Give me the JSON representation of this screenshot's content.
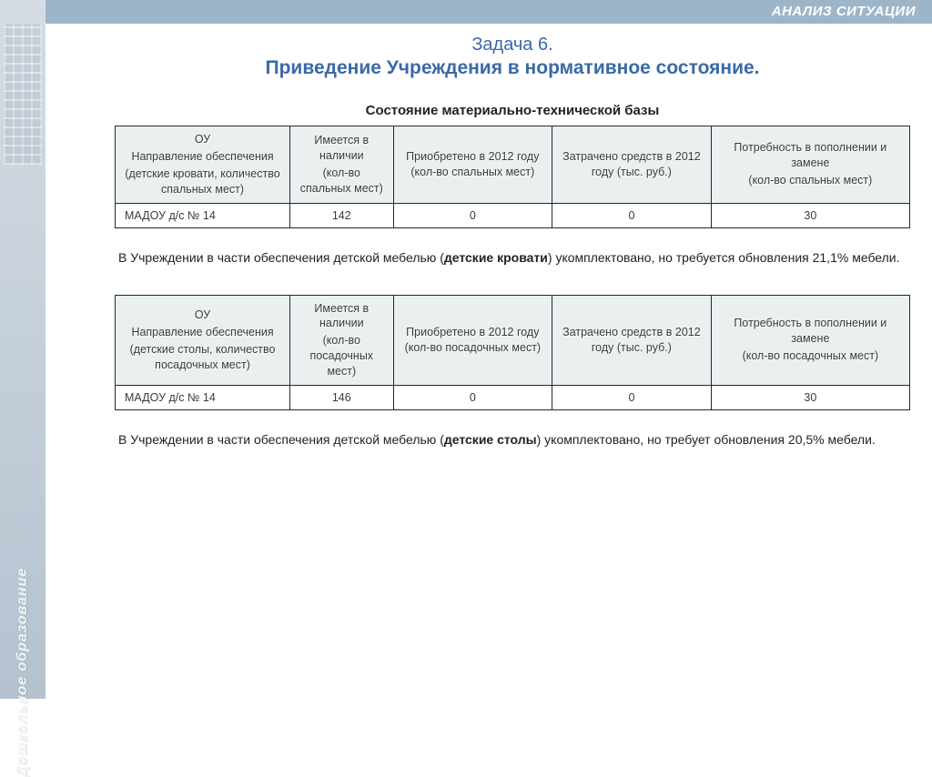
{
  "header": {
    "tab": "АНАЛИЗ СИТУАЦИИ"
  },
  "sidebar": {
    "label": "Дошкольное  образование"
  },
  "titles": {
    "line1": "Задача 6.",
    "line2": "Приведение Учреждения в нормативное состояние."
  },
  "subheading": "Состояние материально-технической базы",
  "table1": {
    "columns": {
      "c1_a": "ОУ",
      "c1_b": "Направление обеспечения",
      "c1_c": "(детские кровати, количество спальных мест)",
      "c2_a": "Имеется в наличии",
      "c2_b": "(кол-во спальных мест)",
      "c3": "Приобретено в 2012 году (кол-во спальных мест)",
      "c4": "Затрачено средств в 2012 году (тыс. руб.)",
      "c5_a": "Потребность в пополнении и замене",
      "c5_b": "(кол-во спальных мест)"
    },
    "row": {
      "label": "МАДОУ д/с № 14",
      "v1": "142",
      "v2": "0",
      "v3": "0",
      "v4": "30"
    }
  },
  "note1_a": "В Учреждении в части обеспечения детской мебелью (",
  "note1_bold": "детские кровати",
  "note1_b": ") укомплектовано, но требуется обновления  21,1% мебели.",
  "table2": {
    "columns": {
      "c1_a": "ОУ",
      "c1_b": "Направление обеспечения",
      "c1_c": "(детские столы, количество посадочных мест)",
      "c2_a": "Имеется в наличии",
      "c2_b": "(кол-во посадочных мест)",
      "c3": "Приобретено в 2012 году (кол-во посадочных мест)",
      "c4": "Затрачено средств в 2012 году (тыс. руб.)",
      "c5_a": "Потребность в пополнении и замене",
      "c5_b": "(кол-во посадочных мест)"
    },
    "row": {
      "label": "МАДОУ д/с № 14",
      "v1": "146",
      "v2": "0",
      "v3": "0",
      "v4": "30"
    }
  },
  "note2_a": "В Учреждении в части обеспечения детской мебелью (",
  "note2_bold": "детские столы",
  "note2_b": ") укомплектовано, но требует обновления 20,5% мебели.",
  "style": {
    "header_bg": "#9db5c9",
    "accent_text": "#3a6aa6",
    "table_header_bg": "#eaf0f0",
    "table_border": "#1b2a3a",
    "col_widths_pct": [
      22,
      13,
      20,
      20,
      25
    ]
  }
}
